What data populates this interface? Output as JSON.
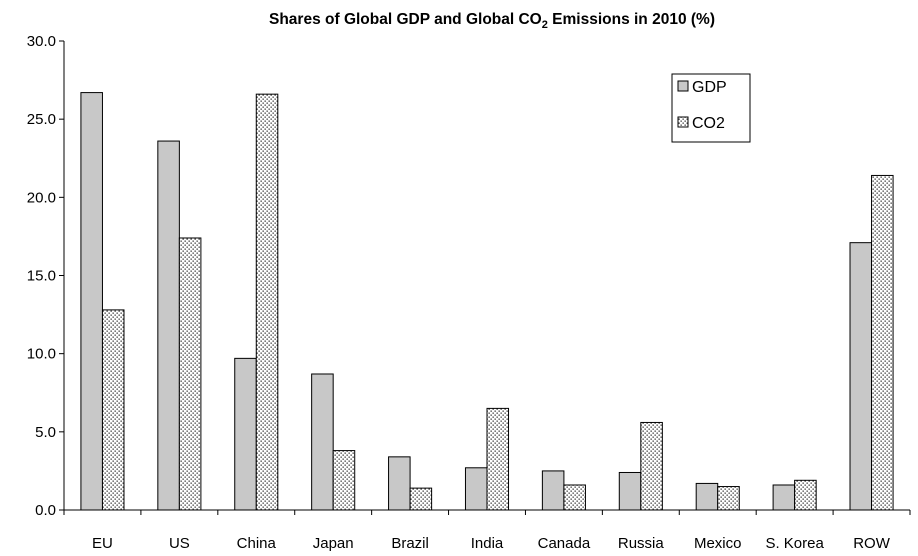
{
  "chart_data": {
    "type": "bar",
    "title": {
      "prefix": "Shares of Global GDP and Global CO",
      "subscript": "2",
      "suffix": " Emissions in 2010 (%)"
    },
    "categories": [
      "EU",
      "US",
      "China",
      "Japan",
      "Brazil",
      "India",
      "Canada",
      "Russia",
      "Mexico",
      "S. Korea",
      "ROW"
    ],
    "series": [
      {
        "name": "GDP",
        "values": [
          26.7,
          23.6,
          9.7,
          8.7,
          3.4,
          2.7,
          2.5,
          2.4,
          1.7,
          1.6,
          17.1
        ],
        "fill": "#c8c8c8"
      },
      {
        "name": "CO2",
        "values": [
          12.8,
          17.4,
          26.6,
          3.8,
          1.4,
          6.5,
          1.6,
          5.6,
          1.5,
          1.9,
          21.4
        ],
        "fill": "dotted"
      }
    ],
    "ylim": [
      0,
      30
    ],
    "yticks": [
      "0.0",
      "5.0",
      "10.0",
      "15.0",
      "20.0",
      "25.0",
      "30.0"
    ],
    "xlabel": "",
    "ylabel": "",
    "grid": false,
    "legend_position": "top-right"
  }
}
